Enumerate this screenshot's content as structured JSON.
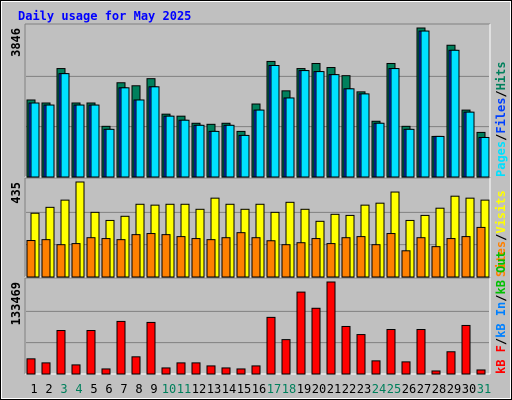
{
  "chart_data": [
    {
      "type": "bar",
      "title": "Daily usage for May 2025",
      "categories": [
        "1",
        "2",
        "3",
        "4",
        "5",
        "6",
        "7",
        "8",
        "9",
        "10",
        "11",
        "12",
        "13",
        "14",
        "15",
        "16",
        "17",
        "18",
        "19",
        "20",
        "21",
        "22",
        "23",
        "24",
        "25",
        "26",
        "27",
        "28",
        "29",
        "30",
        "31"
      ],
      "category_colors": [
        "#000000",
        "#000000",
        "#00805c",
        "#00805c",
        "#000000",
        "#000000",
        "#000000",
        "#000000",
        "#000000",
        "#00805c",
        "#00805c",
        "#000000",
        "#000000",
        "#000000",
        "#000000",
        "#000000",
        "#00805c",
        "#00805c",
        "#000000",
        "#000000",
        "#000000",
        "#000000",
        "#000000",
        "#00805c",
        "#00805c",
        "#000000",
        "#000000",
        "#000000",
        "#000000",
        "#000000",
        "#00805c"
      ],
      "ylim": [
        0,
        3846
      ],
      "yticks": [
        3846
      ],
      "legend_separator": "/",
      "series": [
        {
          "name": "Hits",
          "color": "#00805c",
          "values": [
            1988,
            1910,
            2799,
            1910,
            1910,
            1308,
            2433,
            2355,
            2538,
            1622,
            1570,
            1387,
            1360,
            1387,
            1177,
            1884,
            2983,
            2224,
            2799,
            2930,
            2826,
            2616,
            2198,
            1439,
            2930,
            1308,
            3846,
            1047,
            3401,
            1727,
            1151
          ]
        },
        {
          "name": "Files",
          "color": "#0040ff",
          "values": [
            1910,
            1857,
            2668,
            1857,
            1857,
            1230,
            2302,
            1988,
            2328,
            1570,
            1465,
            1334,
            1177,
            1334,
            1073,
            1727,
            2878,
            2040,
            2747,
            2721,
            2642,
            2276,
            2145,
            1387,
            2799,
            1230,
            3767,
            1047,
            3270,
            1674,
            1020
          ]
        },
        {
          "name": "Pages",
          "color": "#00e0ff",
          "values": [
            1910,
            1857,
            2668,
            1857,
            1857,
            1230,
            2302,
            1988,
            2328,
            1570,
            1465,
            1334,
            1177,
            1334,
            1073,
            1727,
            2878,
            2040,
            2747,
            2721,
            2642,
            2276,
            2145,
            1387,
            2799,
            1230,
            3767,
            1047,
            3270,
            1674,
            1020
          ]
        }
      ]
    },
    {
      "type": "bar",
      "ylim": [
        0,
        435
      ],
      "yticks": [
        435
      ],
      "legend_separator": "/",
      "series": [
        {
          "name": "Visits",
          "color": "#ffff00",
          "values": [
            292,
            319,
            352,
            435,
            296,
            259,
            278,
            333,
            329,
            333,
            333,
            310,
            361,
            333,
            310,
            333,
            296,
            342,
            310,
            255,
            287,
            282,
            329,
            338,
            389,
            259,
            282,
            315,
            370,
            361,
            352
          ]
        },
        {
          "name": "Sites",
          "color": "#ff8000",
          "values": [
            167,
            171,
            148,
            153,
            180,
            176,
            171,
            194,
            199,
            194,
            185,
            176,
            171,
            180,
            203,
            180,
            166,
            148,
            157,
            176,
            153,
            180,
            185,
            148,
            199,
            120,
            180,
            139,
            176,
            185,
            227
          ]
        }
      ]
    },
    {
      "type": "bar",
      "ylim": [
        0,
        133469
      ],
      "yticks": [
        133469
      ],
      "legend_separator": "/",
      "series": [
        {
          "name": "kB Out",
          "color": "#00c000",
          "values": [
            0,
            0,
            0,
            0,
            0,
            0,
            0,
            0,
            0,
            0,
            0,
            0,
            0,
            0,
            0,
            0,
            0,
            0,
            0,
            0,
            0,
            0,
            0,
            0,
            0,
            0,
            0,
            0,
            0,
            0,
            0
          ]
        },
        {
          "name": "kB In",
          "color": "#0080ff",
          "values": [
            0,
            0,
            0,
            0,
            0,
            0,
            0,
            0,
            0,
            0,
            0,
            0,
            0,
            0,
            0,
            0,
            0,
            0,
            0,
            0,
            0,
            0,
            0,
            0,
            0,
            0,
            0,
            0,
            0,
            0,
            0
          ]
        },
        {
          "name": "kB F",
          "color": "#ff0000",
          "values": [
            22005,
            16137,
            63081,
            13203,
            63081,
            7335,
            76284,
            24939,
            74817,
            8802,
            16137,
            16137,
            11736,
            8802,
            7335,
            11736,
            82152,
            49878,
            118827,
            95355,
            133469,
            68949,
            57213,
            19071,
            64548,
            17604,
            64548,
            4401,
            32274,
            70416,
            5868
          ]
        }
      ]
    }
  ]
}
